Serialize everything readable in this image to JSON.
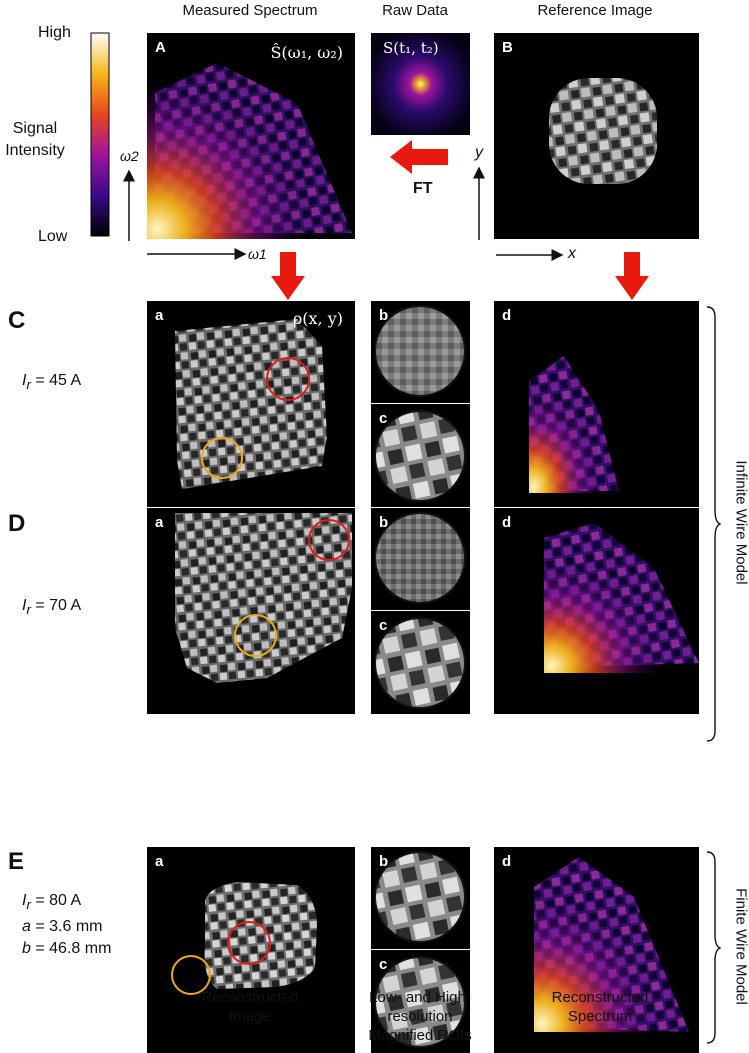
{
  "headers": {
    "measured": "Measured Spectrum",
    "raw": "Raw Data",
    "reference": "Reference Image"
  },
  "colorbar": {
    "high": "High",
    "low": "Low",
    "title_line1": "Signal",
    "title_line2": "Intensity"
  },
  "axes": {
    "omega2": "ω2",
    "omega1": "ω1",
    "y": "y",
    "x": "x",
    "ft": "FT"
  },
  "top_panels": {
    "A": {
      "letter": "A",
      "math": "Ŝ(ω₁, ω₂)"
    },
    "raw": {
      "math": "S(t₁, t₂)"
    },
    "B": {
      "letter": "B"
    }
  },
  "rows": [
    {
      "letter": "C",
      "param_lines": [
        "= 45 A"
      ],
      "math": "ρ(x, y)"
    },
    {
      "letter": "D",
      "param_lines": [
        "= 70 A"
      ]
    },
    {
      "letter": "E",
      "param_lines": [
        "= 80 A",
        "= 3.6 mm",
        "= 46.8 mm"
      ]
    }
  ],
  "param_symbols": {
    "ir": "I",
    "ir_sub": "r",
    "a": "a",
    "b": "b"
  },
  "subletters": {
    "a": "a",
    "b": "b",
    "c": "c",
    "d": "d"
  },
  "side_labels": {
    "infinite": "Infinite Wire Model",
    "finite": "Finite Wire Model"
  },
  "captions": {
    "recon_image": [
      "Reconstructed",
      "Image"
    ],
    "rois": [
      "Low- and High-",
      "resolution",
      "Magnified ROIs"
    ],
    "recon_spectrum": [
      "Reconstructed",
      "Spectrum"
    ]
  },
  "colors": {
    "red_circle": "#e01b1b",
    "yellow_circle": "#f0a81b",
    "arrow": "#e8190f"
  }
}
